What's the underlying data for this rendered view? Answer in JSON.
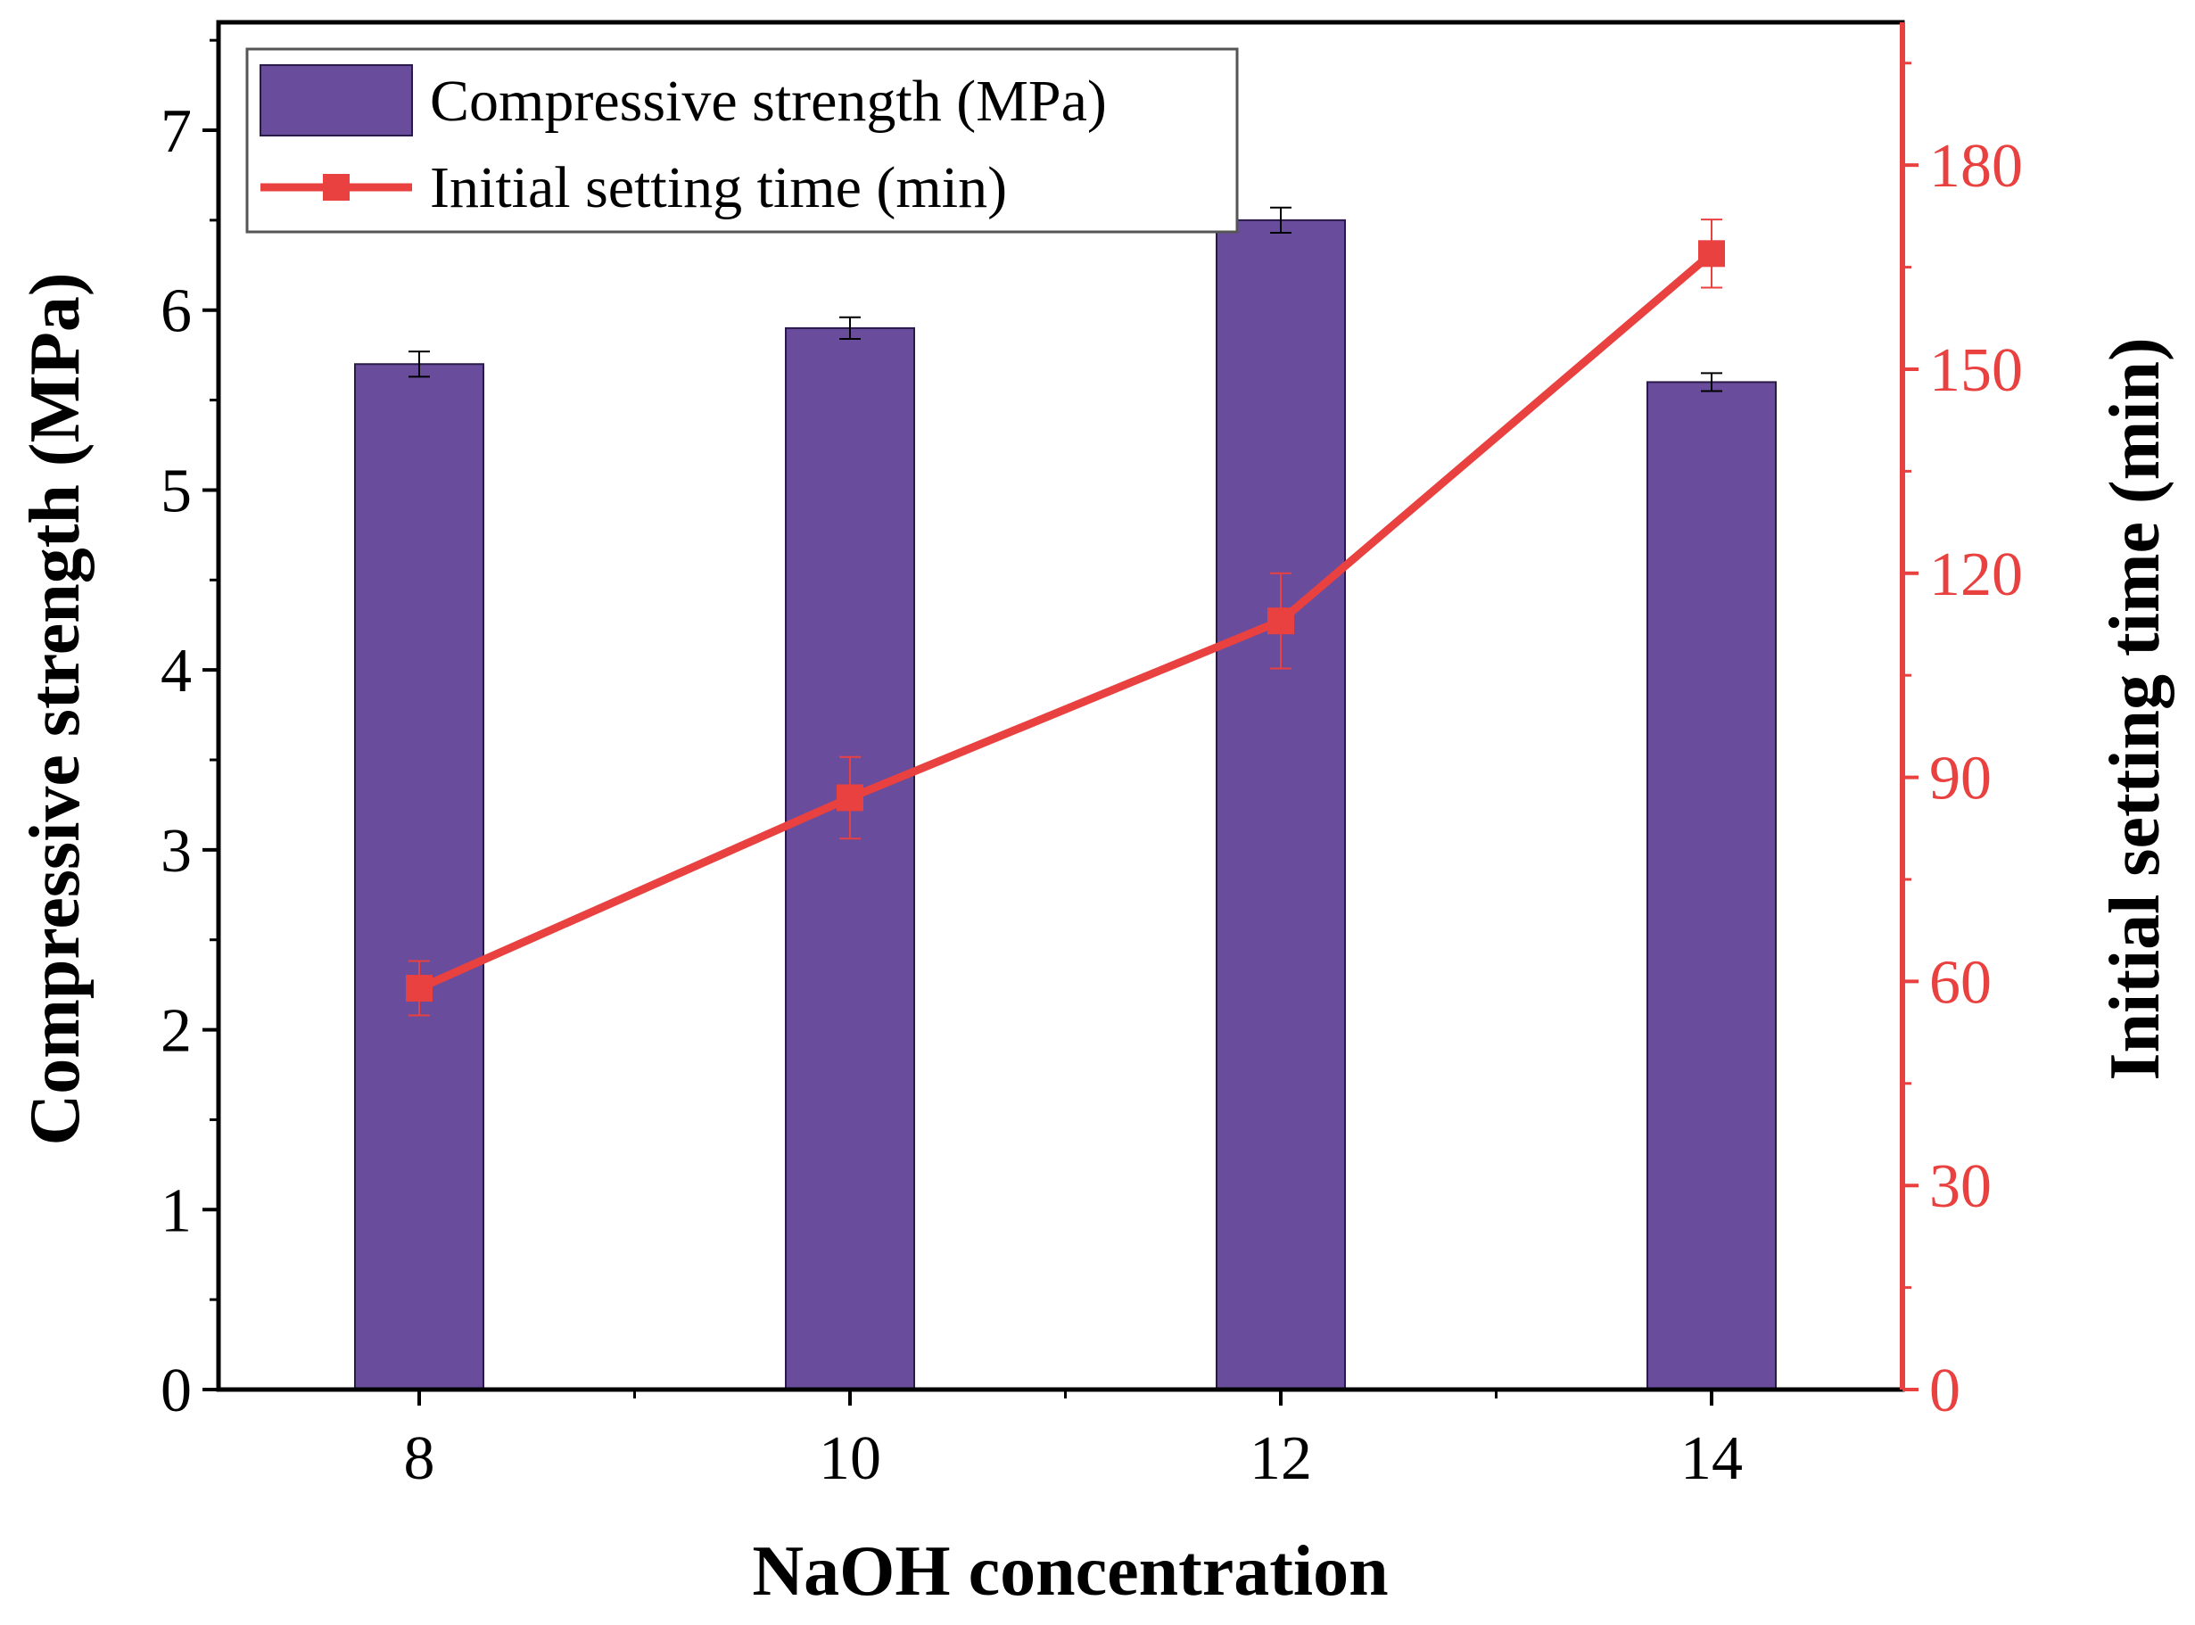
{
  "chart_data": {
    "type": "bar",
    "categories": [
      "8",
      "10",
      "12",
      "14"
    ],
    "xlabel": "NaOH concentration",
    "series": [
      {
        "name": "Compressive strength (MPa)",
        "type": "bar",
        "axis": "left",
        "values": [
          5.7,
          5.9,
          6.5,
          5.6
        ],
        "errors": [
          0.07,
          0.06,
          0.07,
          0.05
        ],
        "color": "#6A4C9C"
      },
      {
        "name": "Initial setting time (min)",
        "type": "line",
        "axis": "right",
        "values": [
          59,
          87,
          113,
          167
        ],
        "errors": [
          4,
          6,
          7,
          5
        ],
        "color": "#E8413F"
      }
    ],
    "left_axis": {
      "label": "Compressive strength (MPa)",
      "ylim": [
        0,
        7.6
      ],
      "ticks": [
        "0",
        "1",
        "2",
        "3",
        "4",
        "5",
        "6",
        "7"
      ]
    },
    "right_axis": {
      "label": "Initial setting time (min)",
      "ylim": [
        0,
        201
      ],
      "ticks": [
        "0",
        "30",
        "60",
        "90",
        "120",
        "150",
        "180"
      ],
      "color": "#E8413F"
    },
    "legend_position": "top-left",
    "grid": false
  }
}
